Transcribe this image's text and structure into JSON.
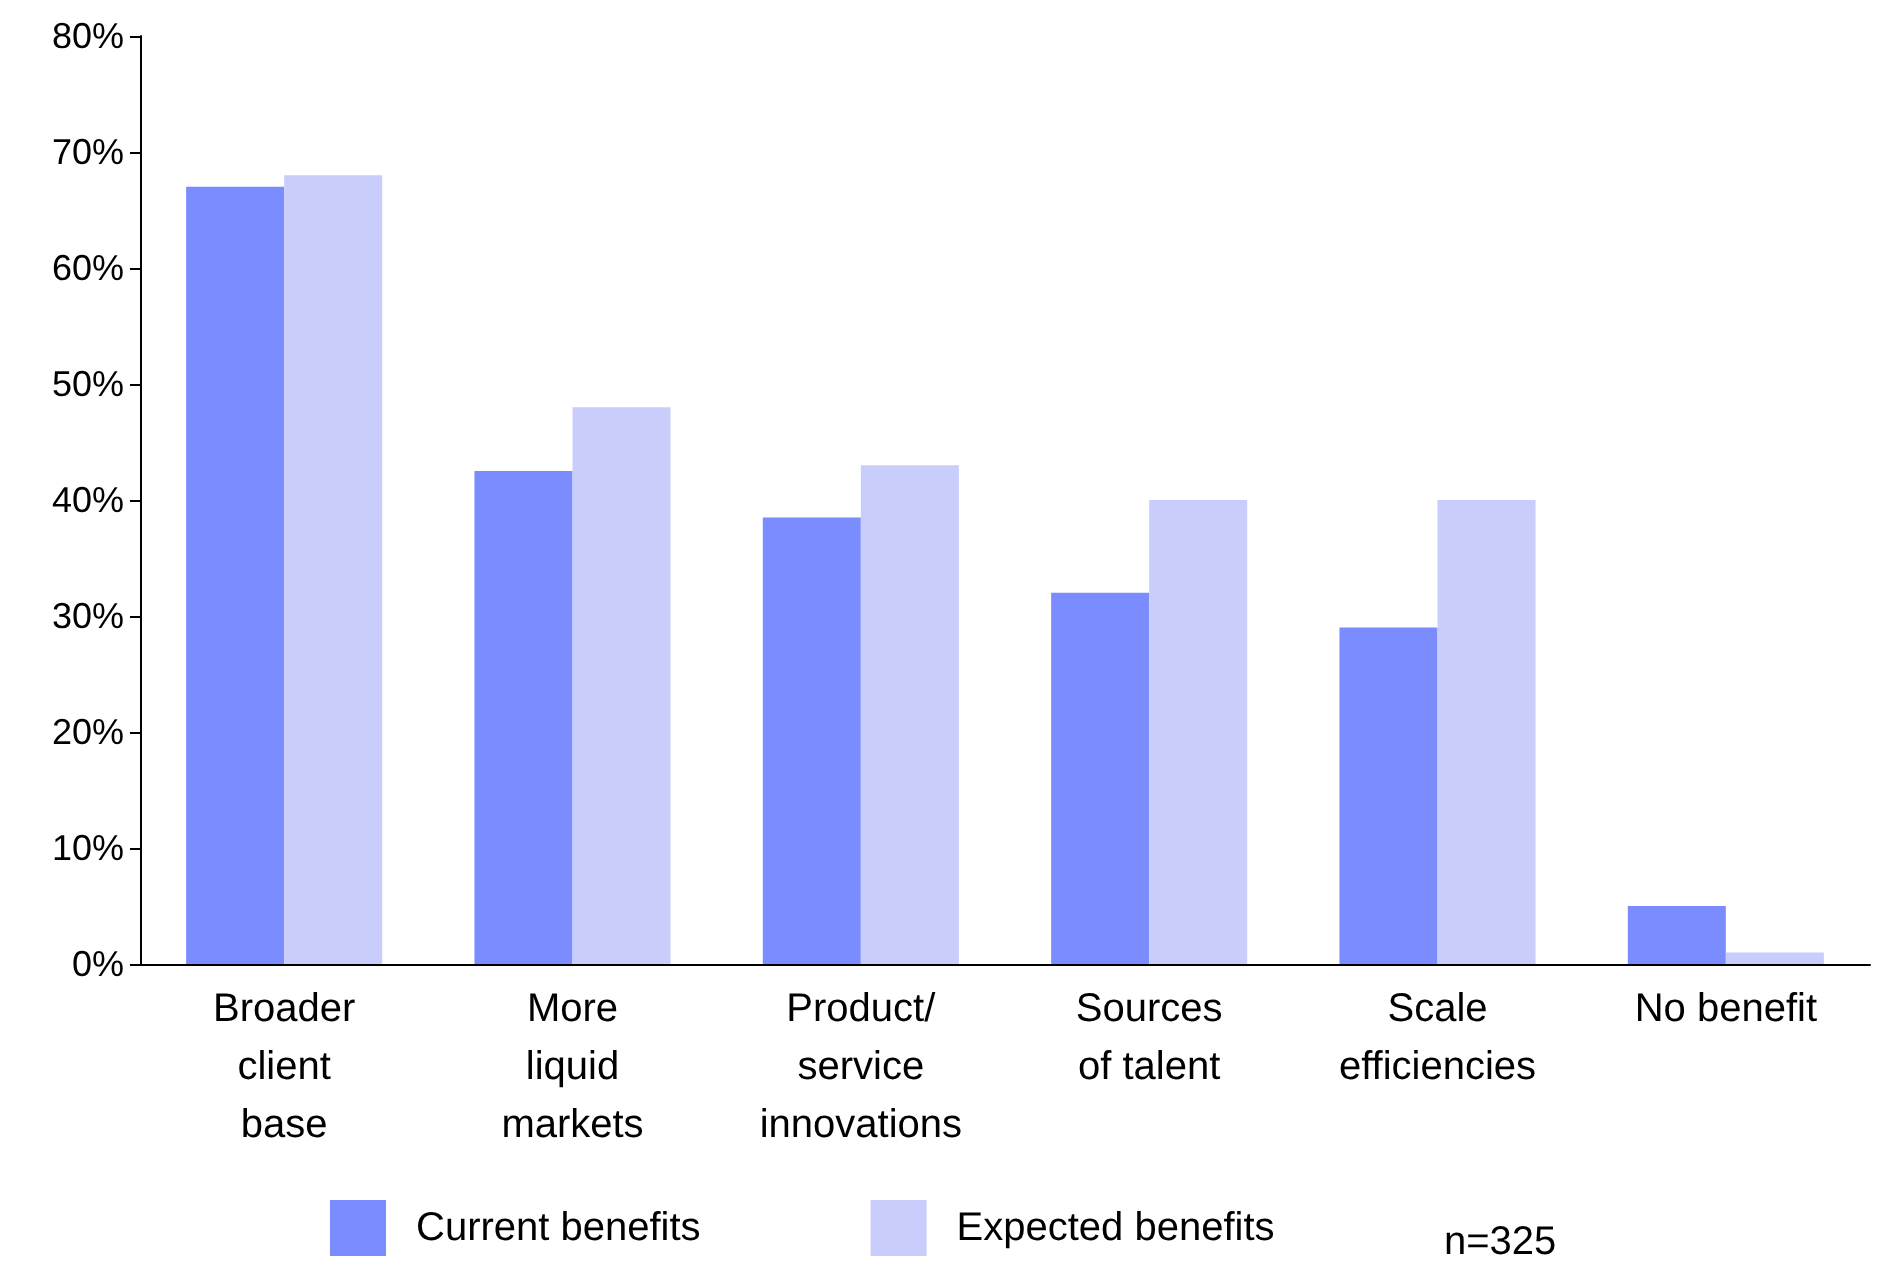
{
  "chart_data": {
    "type": "bar",
    "categories": [
      "Broader\nclient\nbase",
      "More\nliquid\nmarkets",
      "Product/\nservice\ninnovations",
      "Sources\nof talent",
      "Scale\nefficiencies",
      "No benefit"
    ],
    "series": [
      {
        "name": "Current benefits",
        "color": "#7b8cff",
        "values": [
          67,
          42.5,
          38.5,
          32,
          29,
          5
        ]
      },
      {
        "name": "Expected benefits",
        "color": "#c8cdfc",
        "values": [
          68,
          48,
          43,
          40,
          40,
          1
        ]
      }
    ],
    "ylim": [
      0,
      80
    ],
    "yticks": [
      {
        "value": 0,
        "label": "0%"
      },
      {
        "value": 10,
        "label": "10%"
      },
      {
        "value": 20,
        "label": "20%"
      },
      {
        "value": 30,
        "label": "30%"
      },
      {
        "value": 40,
        "label": "40%"
      },
      {
        "value": 50,
        "label": "50%"
      },
      {
        "value": 60,
        "label": "60%"
      },
      {
        "value": 70,
        "label": "70%"
      },
      {
        "value": 80,
        "label": "80%"
      }
    ],
    "grid": false,
    "legend": "bottom",
    "annotations": [
      "n=325"
    ]
  }
}
